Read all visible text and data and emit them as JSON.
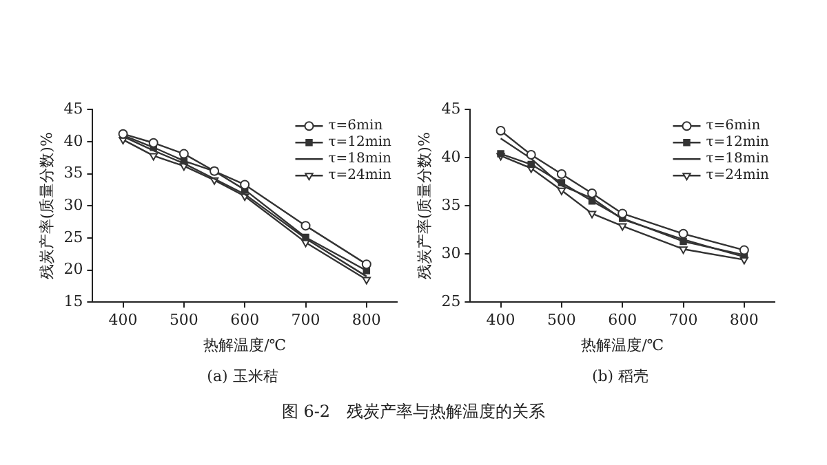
{
  "chart_data": [
    {
      "type": "line",
      "title": "(a) 玉米秸",
      "xlabel": "热解温度/℃",
      "ylabel": "残炭产率(质量分数)%",
      "x": [
        400,
        450,
        500,
        550,
        600,
        700,
        800
      ],
      "xlim": [
        350,
        850
      ],
      "xticks": [
        400,
        500,
        600,
        700,
        800
      ],
      "ylim": [
        15,
        45
      ],
      "yticks": [
        15,
        20,
        25,
        30,
        35,
        40,
        45
      ],
      "grid": false,
      "legend": "top right",
      "annotations": [
        "图 6-2　残炭产率与热解温度的关系"
      ],
      "series": [
        {
          "name": "τ=6min",
          "color": "#333333",
          "marker": "circle",
          "values": [
            41.2,
            39.8,
            38.1,
            35.4,
            33.3,
            26.9,
            20.9
          ]
        },
        {
          "name": "τ=12min",
          "color": "#333333",
          "marker": "square",
          "values": [
            41.0,
            39.1,
            37.0,
            35.4,
            32.5,
            25.1,
            19.9
          ]
        },
        {
          "name": "τ=18min",
          "color": "#333333",
          "marker": "none",
          "values": [
            40.8,
            38.6,
            36.6,
            34.2,
            31.8,
            24.9,
            19.0
          ]
        },
        {
          "name": "τ=24min",
          "color": "#333333",
          "marker": "triangle",
          "values": [
            40.3,
            37.8,
            36.2,
            34.0,
            31.5,
            24.3,
            18.5
          ]
        }
      ]
    },
    {
      "type": "line",
      "title": "(b) 稻壳",
      "xlabel": "热解温度/℃",
      "ylabel": "残炭产率(质量分数)%",
      "x": [
        400,
        450,
        500,
        550,
        600,
        700,
        800
      ],
      "xlim": [
        350,
        850
      ],
      "xticks": [
        400,
        500,
        600,
        700,
        800
      ],
      "ylim": [
        25,
        45
      ],
      "yticks": [
        25,
        30,
        35,
        40,
        45
      ],
      "grid": false,
      "legend": "top right",
      "series": [
        {
          "name": "τ=6min",
          "color": "#333333",
          "marker": "circle",
          "values": [
            42.8,
            40.3,
            38.3,
            36.3,
            34.2,
            32.1,
            30.4
          ]
        },
        {
          "name": "τ=12min",
          "color": "#333333",
          "marker": "square",
          "values": [
            40.4,
            39.3,
            37.4,
            35.5,
            33.7,
            31.3,
            29.9
          ]
        },
        {
          "name": "τ=18min",
          "color": "#333333",
          "marker": "none",
          "values": [
            42.0,
            39.9,
            37.1,
            35.8,
            33.6,
            31.5,
            29.7
          ]
        },
        {
          "name": "τ=24min",
          "color": "#333333",
          "marker": "triangle",
          "values": [
            40.2,
            38.9,
            36.6,
            34.2,
            32.9,
            30.5,
            29.4
          ]
        }
      ]
    }
  ]
}
